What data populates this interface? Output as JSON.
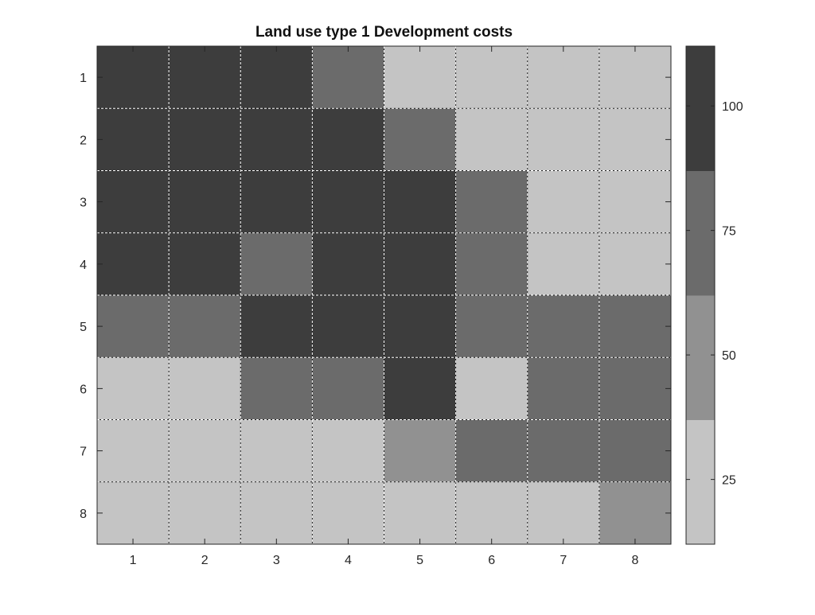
{
  "chart_data": {
    "type": "heatmap",
    "title": "Land use type 1 Development costs",
    "xlabel": "",
    "ylabel": "",
    "x_ticks": [
      "1",
      "2",
      "3",
      "4",
      "5",
      "6",
      "7",
      "8"
    ],
    "y_ticks": [
      "1",
      "2",
      "3",
      "4",
      "5",
      "6",
      "7",
      "8"
    ],
    "grid": true,
    "values": [
      [
        110,
        110,
        110,
        75,
        25,
        25,
        25,
        25
      ],
      [
        110,
        110,
        110,
        110,
        75,
        25,
        25,
        25
      ],
      [
        110,
        110,
        110,
        110,
        110,
        75,
        25,
        25
      ],
      [
        110,
        110,
        75,
        110,
        110,
        75,
        25,
        25
      ],
      [
        75,
        75,
        110,
        110,
        110,
        75,
        75,
        75
      ],
      [
        25,
        25,
        75,
        75,
        110,
        25,
        75,
        75
      ],
      [
        25,
        25,
        25,
        25,
        50,
        75,
        75,
        75
      ],
      [
        25,
        25,
        25,
        25,
        25,
        25,
        25,
        50
      ]
    ],
    "colorbar": {
      "range": [
        12,
        112
      ],
      "ticks": [
        {
          "value": 25,
          "label": "25"
        },
        {
          "value": 50,
          "label": "50"
        },
        {
          "value": 75,
          "label": "75"
        },
        {
          "value": 100,
          "label": "100"
        }
      ],
      "levels": [
        {
          "value": 25,
          "color": "#c4c4c4"
        },
        {
          "value": 50,
          "color": "#919191"
        },
        {
          "value": 75,
          "color": "#6b6b6b"
        },
        {
          "value": 110,
          "color": "#3d3d3d"
        }
      ],
      "boundaries": [
        12,
        37,
        62,
        87,
        112
      ]
    }
  }
}
